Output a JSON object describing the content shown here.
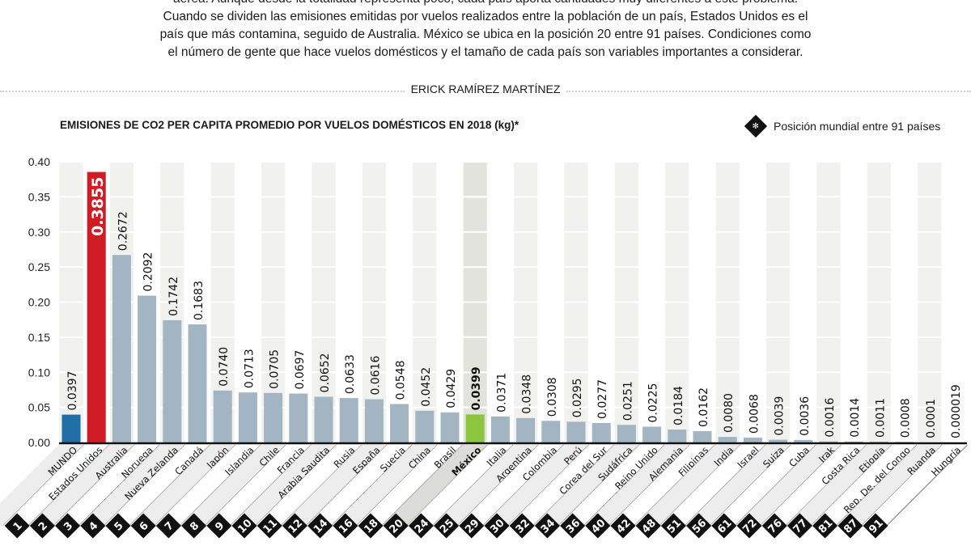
{
  "intro": {
    "lines": [
      "aérea. Aunque desde la totalidad representa poco, cada país aporta cantidades muy diferentes a este problema.",
      "Cuando se dividen las emisiones emitidas por vuelos realizados entre la población de un país, Estados Unidos es el",
      "país que más contamina, seguido de Australia. México se ubica en la posición 20 entre 91 países. Condiciones como",
      "el número de gente que hace vuelos domésticos y el tamaño de cada país son variables importantes a considerar."
    ]
  },
  "byline": "ERICK RAMÍREZ MARTÍNEZ",
  "legend": {
    "icon": "diamond-rank-icon",
    "label": "Posición mundial entre 91 países"
  },
  "chart_data": {
    "type": "bar",
    "title": "EMISIONES DE CO2 PER CAPITA PROMEDIO POR VUELOS DOMÉSTICOS EN 2018 (kg)*",
    "ylim": [
      0,
      0.4
    ],
    "yticks": [
      "0.00",
      "0.05",
      "0.10",
      "0.15",
      "0.20",
      "0.25",
      "0.30",
      "0.35",
      "0.40"
    ],
    "grid": true,
    "legend_placement": "top-right",
    "categories": [
      "MUNDO",
      "Estados Unidos",
      "Australia",
      "Noruega",
      "Nueva Zelanda",
      "Canadá",
      "Japón",
      "Islandia",
      "Chile",
      "Francia",
      "Arabia Saudita",
      "Rusia",
      "España",
      "Suecia",
      "China",
      "Brasil",
      "México",
      "Italia",
      "Argentina",
      "Colombia",
      "Perú",
      "Corea del Sur",
      "Sudáfrica",
      "Reino Unido",
      "Alemania",
      "Filipinas",
      "India",
      "Israel",
      "Suiza",
      "Cuba",
      "Irak",
      "Costa Rica",
      "Etiopía",
      "Rep. De. del Congo",
      "Ruanda",
      "Hungría"
    ],
    "values": [
      0.0397,
      0.3855,
      0.2672,
      0.2092,
      0.1742,
      0.1683,
      0.074,
      0.0713,
      0.0705,
      0.0697,
      0.0652,
      0.0633,
      0.0616,
      0.0548,
      0.0452,
      0.0429,
      0.0399,
      0.0371,
      0.0348,
      0.0308,
      0.0295,
      0.0277,
      0.0251,
      0.0225,
      0.0184,
      0.0162,
      0.008,
      0.0068,
      0.0039,
      0.0036,
      0.0016,
      0.0014,
      0.0011,
      0.0008,
      0.0001,
      1.9e-05
    ],
    "value_labels": [
      "0.0397",
      "0.3855",
      "0.2672",
      "0.2092",
      "0.1742",
      "0.1683",
      "0.0740",
      "0.0713",
      "0.0705",
      "0.0697",
      "0.0652",
      "0.0633",
      "0.0616",
      "0.0548",
      "0.0452",
      "0.0429",
      "0.0399",
      "0.0371",
      "0.0348",
      "0.0308",
      "0.0295",
      "0.0277",
      "0.0251",
      "0.0225",
      "0.0184",
      "0.0162",
      "0.0080",
      "0.0068",
      "0.0039",
      "0.0036",
      "0.0016",
      "0.0014",
      "0.0011",
      "0.0008",
      "0.0001",
      "0.000019"
    ],
    "ranks": [
      null,
      1,
      2,
      3,
      4,
      5,
      6,
      7,
      8,
      9,
      10,
      11,
      12,
      14,
      16,
      18,
      20,
      24,
      25,
      29,
      30,
      32,
      34,
      36,
      40,
      42,
      48,
      51,
      56,
      61,
      72,
      76,
      77,
      81,
      87,
      91
    ],
    "colors": {
      "default": "#a3b5c3",
      "MUNDO": "#1f6ea5",
      "Estados Unidos": "#d01c24",
      "México": "#8cc63f",
      "highlight_column": "#e3e3de"
    }
  }
}
